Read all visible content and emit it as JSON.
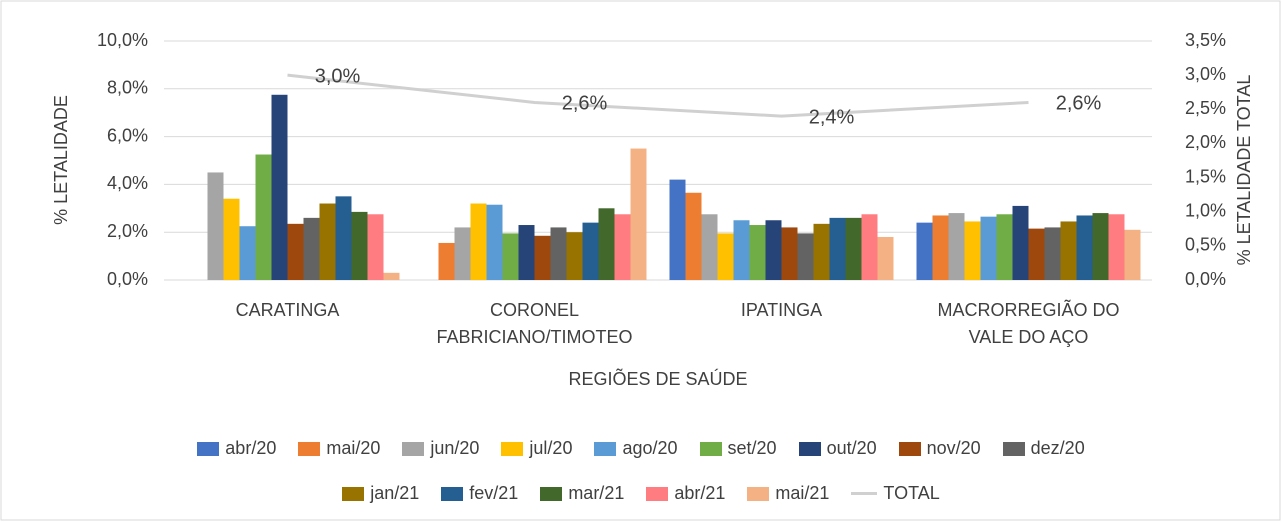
{
  "chart_data": {
    "type": "bar",
    "x_label": "REGIÕES DE SAÚDE",
    "y_label": "% LETALIDADE",
    "y2_label": "% LETALIDADE TOTAL",
    "categories": [
      "CARATINGA",
      "CORONEL\nFABRICIANO/TIMOTEO",
      "IPATINGA",
      "MACRORREGIÃO DO\nVALE DO AÇO"
    ],
    "ylim": [
      0,
      10
    ],
    "yticks": [
      {
        "value": 0,
        "label": "0,0%"
      },
      {
        "value": 2,
        "label": "2,0%"
      },
      {
        "value": 4,
        "label": "4,0%"
      },
      {
        "value": 6,
        "label": "6,0%"
      },
      {
        "value": 8,
        "label": "8,0%"
      },
      {
        "value": 10,
        "label": "10,0%"
      }
    ],
    "y2lim": [
      0,
      3.5
    ],
    "y2ticks": [
      {
        "value": 0,
        "label": "0,0%"
      },
      {
        "value": 0.5,
        "label": "0,5%"
      },
      {
        "value": 1,
        "label": "1,0%"
      },
      {
        "value": 1.5,
        "label": "1,5%"
      },
      {
        "value": 2,
        "label": "2,0%"
      },
      {
        "value": 2.5,
        "label": "2,5%"
      },
      {
        "value": 3,
        "label": "3,0%"
      },
      {
        "value": 3.5,
        "label": "3,5%"
      }
    ],
    "grid": true,
    "legend": "bottom",
    "series": [
      {
        "name": "abr/20",
        "color": "#4472c4",
        "values": [
          0,
          0,
          4.2,
          2.4
        ]
      },
      {
        "name": "mai/20",
        "color": "#ed7d31",
        "values": [
          0,
          1.55,
          3.65,
          2.7
        ]
      },
      {
        "name": "jun/20",
        "color": "#a5a5a5",
        "values": [
          4.5,
          2.2,
          2.75,
          2.8
        ]
      },
      {
        "name": "jul/20",
        "color": "#ffc000",
        "values": [
          3.4,
          3.2,
          1.95,
          2.45
        ]
      },
      {
        "name": "ago/20",
        "color": "#5b9bd5",
        "values": [
          2.25,
          3.15,
          2.5,
          2.65
        ]
      },
      {
        "name": "set/20",
        "color": "#70ad47",
        "values": [
          5.25,
          1.95,
          2.3,
          2.75
        ]
      },
      {
        "name": "out/20",
        "color": "#264478",
        "values": [
          7.75,
          2.3,
          2.5,
          3.1
        ]
      },
      {
        "name": "nov/20",
        "color": "#9e480e",
        "values": [
          2.35,
          1.85,
          2.2,
          2.15
        ]
      },
      {
        "name": "dez/20",
        "color": "#636363",
        "values": [
          2.6,
          2.2,
          1.95,
          2.2
        ]
      },
      {
        "name": "jan/21",
        "color": "#997300",
        "values": [
          3.2,
          2.0,
          2.35,
          2.45
        ]
      },
      {
        "name": "fev/21",
        "color": "#255e91",
        "values": [
          3.5,
          2.4,
          2.6,
          2.7
        ]
      },
      {
        "name": "mar/21",
        "color": "#43682b",
        "values": [
          2.85,
          3.0,
          2.6,
          2.8
        ]
      },
      {
        "name": "abr/21",
        "color": "#ff7c80",
        "values": [
          2.75,
          2.75,
          2.75,
          2.75
        ]
      },
      {
        "name": "mai/21",
        "color": "#f4b183",
        "values": [
          0.3,
          5.5,
          1.8,
          2.1
        ]
      },
      {
        "name": "TOTAL",
        "color": "#d0d0d0",
        "type": "line",
        "axis": "y2",
        "values": [
          3.0,
          2.6,
          2.4,
          2.6
        ],
        "value_labels": [
          "3,0%",
          "2,6%",
          "2,4%",
          "2,6%"
        ]
      }
    ]
  }
}
